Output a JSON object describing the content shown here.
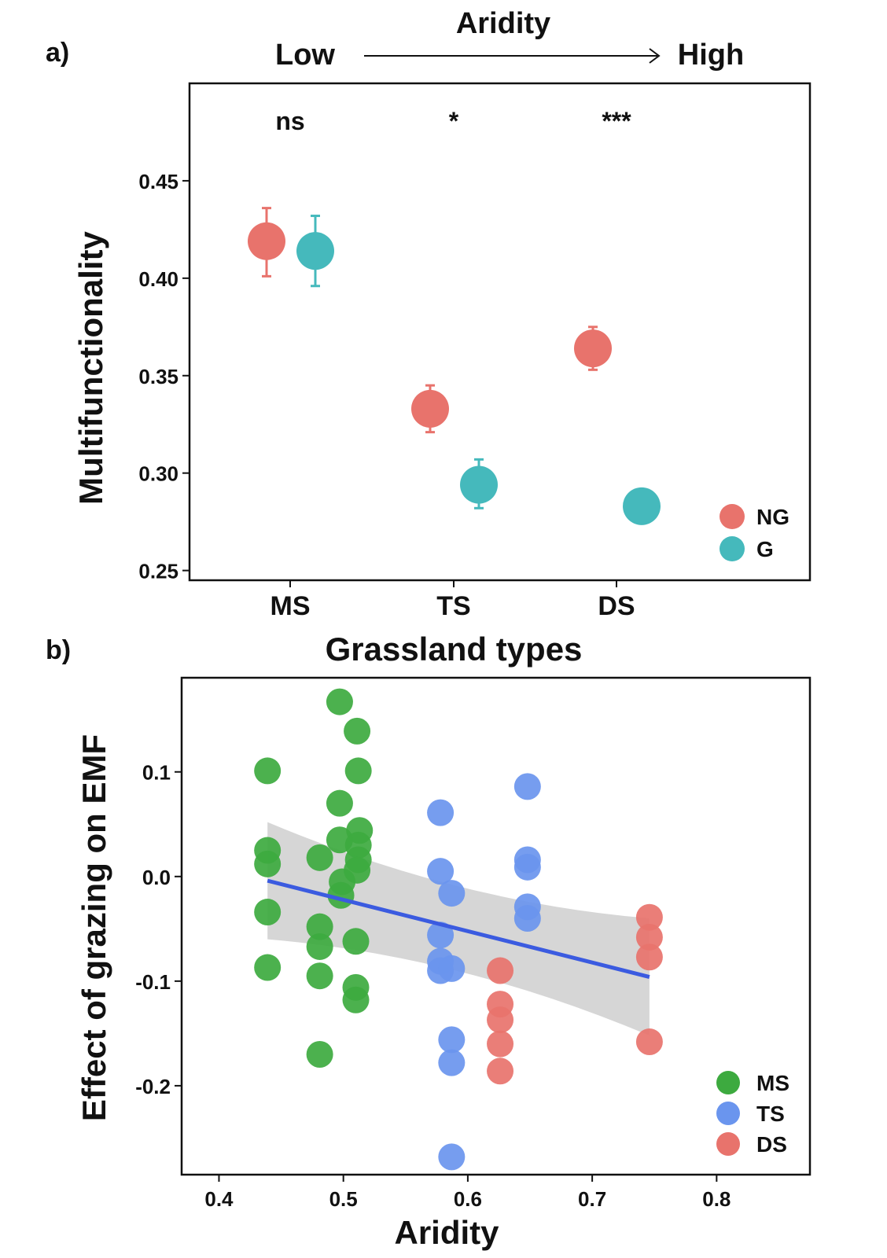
{
  "panel_a": {
    "label": "a)",
    "header": {
      "title": "Aridity",
      "low": "Low",
      "high": "High"
    },
    "significance": [
      "ns",
      "*",
      "***"
    ]
  },
  "panel_b": {
    "label": "b)",
    "title": "Grassland types"
  },
  "colors": {
    "NG": "#E8736C",
    "G": "#45B9BC",
    "MS": "#3DAA3F",
    "TS": "#6A95EE",
    "DS": "#E8736C",
    "line": "#3B5BE0",
    "ribbon": "#C8C8C8"
  },
  "chart_data": [
    {
      "type": "scatter",
      "panel": "a",
      "categories": [
        "MS",
        "TS",
        "DS"
      ],
      "xlabel": "Grassland types",
      "ylabel": "Multifunctionality",
      "ylim": [
        0.245,
        0.5
      ],
      "yticks": [
        0.25,
        0.3,
        0.35,
        0.4,
        0.45
      ],
      "ytick_labels": [
        "0.25",
        "0.30",
        "0.35",
        "0.40",
        "0.45"
      ],
      "legend": {
        "position": "bottom-right",
        "entries": [
          "NG",
          "G"
        ]
      },
      "series": [
        {
          "name": "NG",
          "means": [
            0.419,
            0.333,
            0.364
          ],
          "lower": [
            0.401,
            0.321,
            0.353
          ],
          "upper": [
            0.436,
            0.345,
            0.375
          ]
        },
        {
          "name": "G",
          "means": [
            0.414,
            0.294,
            0.283
          ],
          "lower": [
            0.396,
            0.282,
            0.283
          ],
          "upper": [
            0.432,
            0.307,
            0.283
          ]
        }
      ],
      "significance": [
        "ns",
        "*",
        "***"
      ]
    },
    {
      "type": "scatter",
      "panel": "b",
      "xlabel": "Aridity",
      "ylabel": "Effect of grazing on EMF",
      "xlim": [
        0.37,
        0.875
      ],
      "ylim": [
        -0.285,
        0.19
      ],
      "xticks": [
        0.4,
        0.5,
        0.6,
        0.7,
        0.8
      ],
      "xtick_labels": [
        "0.4",
        "0.5",
        "0.6",
        "0.7",
        "0.8"
      ],
      "yticks": [
        -0.2,
        -0.1,
        0.0,
        0.1
      ],
      "ytick_labels": [
        "-0.2",
        "-0.1",
        "0.0",
        "0.1"
      ],
      "legend": {
        "position": "bottom-right",
        "entries": [
          "MS",
          "TS",
          "DS"
        ]
      },
      "series": [
        {
          "name": "MS",
          "points": [
            [
              0.439,
              0.101
            ],
            [
              0.439,
              0.025
            ],
            [
              0.439,
              0.012
            ],
            [
              0.439,
              -0.034
            ],
            [
              0.439,
              -0.087
            ],
            [
              0.481,
              0.018
            ],
            [
              0.481,
              -0.048
            ],
            [
              0.481,
              -0.067
            ],
            [
              0.481,
              -0.095
            ],
            [
              0.481,
              -0.17
            ],
            [
              0.497,
              0.167
            ],
            [
              0.497,
              0.07
            ],
            [
              0.497,
              0.035
            ],
            [
              0.499,
              -0.005
            ],
            [
              0.498,
              -0.018
            ],
            [
              0.511,
              0.139
            ],
            [
              0.512,
              0.101
            ],
            [
              0.513,
              0.044
            ],
            [
              0.512,
              0.03
            ],
            [
              0.512,
              0.016
            ],
            [
              0.511,
              0.006
            ],
            [
              0.51,
              -0.062
            ],
            [
              0.51,
              -0.106
            ],
            [
              0.51,
              -0.118
            ]
          ]
        },
        {
          "name": "TS",
          "points": [
            [
              0.578,
              0.061
            ],
            [
              0.578,
              0.005
            ],
            [
              0.587,
              -0.016
            ],
            [
              0.578,
              -0.056
            ],
            [
              0.578,
              -0.081
            ],
            [
              0.578,
              -0.09
            ],
            [
              0.587,
              -0.088
            ],
            [
              0.587,
              -0.156
            ],
            [
              0.587,
              -0.178
            ],
            [
              0.587,
              -0.268
            ],
            [
              0.648,
              0.086
            ],
            [
              0.648,
              0.016
            ],
            [
              0.648,
              0.009
            ],
            [
              0.648,
              -0.029
            ],
            [
              0.648,
              -0.04
            ]
          ]
        },
        {
          "name": "DS",
          "points": [
            [
              0.626,
              -0.09
            ],
            [
              0.626,
              -0.122
            ],
            [
              0.626,
              -0.137
            ],
            [
              0.626,
              -0.16
            ],
            [
              0.626,
              -0.186
            ],
            [
              0.746,
              -0.039
            ],
            [
              0.746,
              -0.058
            ],
            [
              0.746,
              -0.077
            ],
            [
              0.746,
              -0.158
            ]
          ]
        }
      ],
      "fit": {
        "x": [
          0.439,
          0.746
        ],
        "y": [
          -0.004,
          -0.096
        ],
        "ci_lower": [
          -0.06,
          -0.152
        ],
        "ci_upper": [
          0.052,
          -0.04
        ]
      }
    }
  ]
}
